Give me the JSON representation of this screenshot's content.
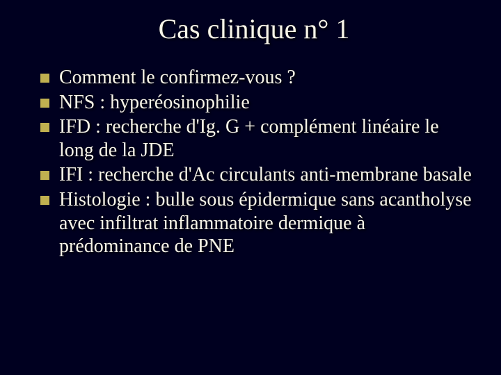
{
  "background_color": "#000020",
  "text_color": "#f8f5e8",
  "bullet_color": "#c0b050",
  "title": "Cas clinique n° 1",
  "title_fontsize": 40,
  "body_fontsize": 28,
  "bullets": [
    "Comment le confirmez-vous ?",
    "NFS : hyperéosinophilie",
    "IFD : recherche d'Ig. G + complément linéaire le long de la JDE",
    "IFI : recherche d'Ac circulants anti-membrane basale",
    "Histologie : bulle sous épidermique sans acantholyse avec infiltrat inflammatoire dermique à prédominance de PNE"
  ]
}
